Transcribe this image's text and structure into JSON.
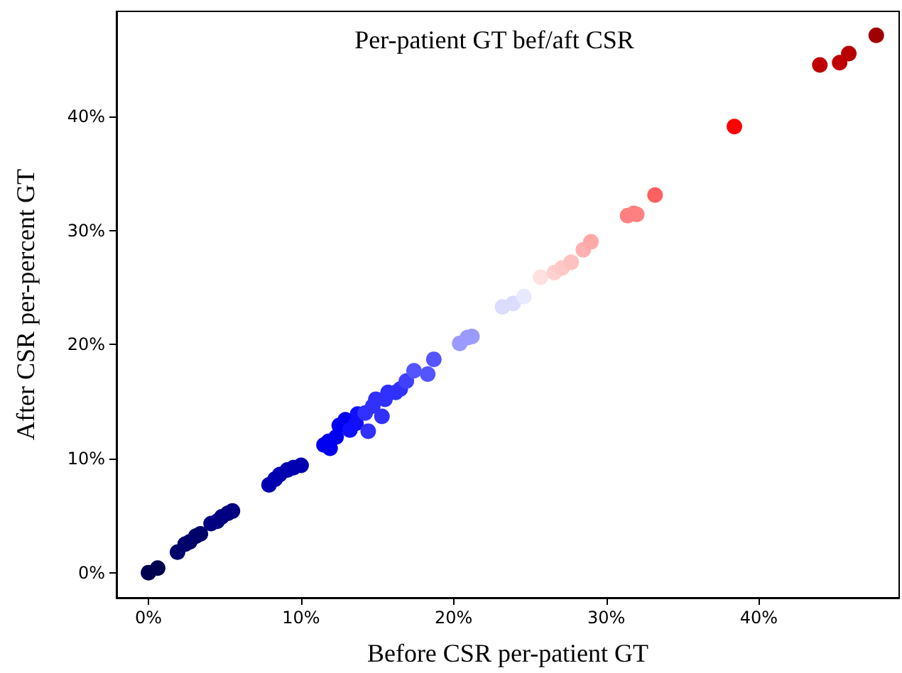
{
  "chart_data": {
    "type": "scatter",
    "title": "Per-patient GT bef/aft CSR",
    "xlabel": "Before CSR per-patient GT",
    "ylabel": "After CSR per-percent GT",
    "x": [
      0,
      0.6,
      1.9,
      2.4,
      2.7,
      3.1,
      3.4,
      4.1,
      4.5,
      4.8,
      5.2,
      5.5,
      7.9,
      8.3,
      8.6,
      9.1,
      9.5,
      10.0,
      11.5,
      11.9,
      11.8,
      12.3,
      12.5,
      12.9,
      13.2,
      13.6,
      13.7,
      14.4,
      14.2,
      14.7,
      14.9,
      15.3,
      15.5,
      15.7,
      16.2,
      16.5,
      16.9,
      17.4,
      18.3,
      18.7,
      20.4,
      20.9,
      21.2,
      23.2,
      23.9,
      24.6,
      25.7,
      26.6,
      27.1,
      27.7,
      28.5,
      29.0,
      31.4,
      31.8,
      32.0,
      33.2,
      38.4,
      44.0,
      45.3,
      45.9,
      47.7
    ],
    "values": [
      0,
      0.4,
      1.8,
      2.5,
      2.7,
      3.2,
      3.4,
      4.3,
      4.5,
      4.9,
      5.2,
      5.4,
      7.7,
      8.2,
      8.6,
      9.0,
      9.2,
      9.4,
      11.2,
      10.9,
      11.5,
      11.9,
      12.9,
      13.4,
      12.5,
      13.1,
      13.9,
      12.4,
      14.0,
      14.6,
      15.2,
      13.7,
      15.2,
      15.8,
      15.8,
      16.1,
      16.8,
      17.7,
      17.4,
      18.7,
      20.1,
      20.6,
      20.7,
      23.3,
      23.6,
      24.2,
      25.9,
      26.3,
      26.7,
      27.2,
      28.3,
      29.0,
      31.3,
      31.5,
      31.4,
      33.1,
      39.1,
      44.5,
      44.7,
      45.5,
      47.1
    ],
    "colors": [
      "#000050",
      "#000050",
      "#00006a",
      "#00006a",
      "#00006a",
      "#00006a",
      "#00006a",
      "#000080",
      "#000080",
      "#000080",
      "#000080",
      "#000080",
      "#0000b0",
      "#0000b0",
      "#0000b0",
      "#0000b0",
      "#0000b0",
      "#0000b0",
      "#0000f0",
      "#0000f0",
      "#0000f0",
      "#0000f0",
      "#0000f0",
      "#0000f0",
      "#1010ff",
      "#1010ff",
      "#1010ff",
      "#3030ff",
      "#3030ff",
      "#3030ff",
      "#3030ff",
      "#3030ff",
      "#3030ff",
      "#3030ff",
      "#3030ff",
      "#3030ff",
      "#4040ff",
      "#5555ff",
      "#5555ff",
      "#5555ff",
      "#9a9aff",
      "#9a9aff",
      "#9a9aff",
      "#dcdcff",
      "#dcdcff",
      "#e8e8ff",
      "#ffe0e0",
      "#ffd0d0",
      "#ffc8c8",
      "#ffc0c0",
      "#ffb0b0",
      "#ffa8a8",
      "#ff8080",
      "#ff8080",
      "#ff8080",
      "#ff6060",
      "#ff0000",
      "#c00000",
      "#c00000",
      "#b80000",
      "#a00000"
    ],
    "xlim": [
      -2.1,
      49.2
    ],
    "ylim": [
      -2.2,
      49.2
    ],
    "xticks": [
      {
        "value": 0,
        "label": "0%"
      },
      {
        "value": 10,
        "label": "10%"
      },
      {
        "value": 20,
        "label": "20%"
      },
      {
        "value": 30,
        "label": "30%"
      },
      {
        "value": 40,
        "label": "40%"
      }
    ],
    "yticks": [
      {
        "value": 0,
        "label": "0%"
      },
      {
        "value": 10,
        "label": "10%"
      },
      {
        "value": 20,
        "label": "20%"
      },
      {
        "value": 30,
        "label": "30%"
      },
      {
        "value": 40,
        "label": "40%"
      }
    ],
    "grid": false,
    "marker": "circle"
  }
}
